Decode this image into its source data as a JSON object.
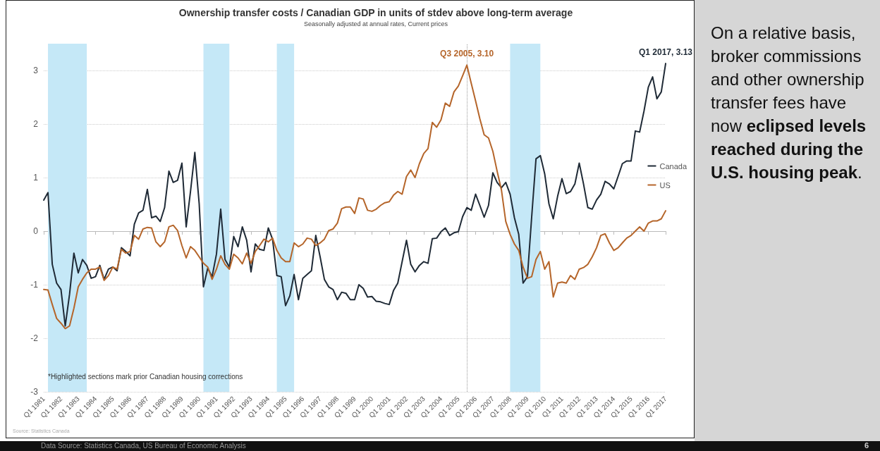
{
  "chart_data": {
    "type": "line",
    "title": "Ownership transfer costs / Canadian GDP in units of stdev above long-term average",
    "subtitle": "Seasonally adjusted at annual rates, Current prices",
    "x": [
      "1981-01",
      "1981-04",
      "1981-07",
      "1981-10",
      "1982-01",
      "1982-04",
      "1982-07",
      "1982-10",
      "1983-01",
      "1983-04",
      "1983-07",
      "1983-10",
      "1984-01",
      "1984-04",
      "1984-07",
      "1984-10",
      "1985-01",
      "1985-04",
      "1985-07",
      "1985-10",
      "1986-01",
      "1986-04",
      "1986-07",
      "1986-10",
      "1987-01",
      "1987-04",
      "1987-07",
      "1987-10",
      "1988-01",
      "1988-04",
      "1988-07",
      "1988-10",
      "1989-01",
      "1989-04",
      "1989-07",
      "1989-10",
      "1990-01",
      "1990-04",
      "1990-07",
      "1990-10",
      "1991-01",
      "1991-04",
      "1991-07",
      "1991-10",
      "1992-01",
      "1992-04",
      "1992-07",
      "1992-10",
      "1993-01",
      "1993-04",
      "1993-07",
      "1993-10",
      "1994-01",
      "1994-04",
      "1994-07",
      "1994-10",
      "1995-01",
      "1995-04",
      "1995-07",
      "1995-10",
      "1996-01",
      "1996-04",
      "1996-07",
      "1996-10",
      "1997-01",
      "1997-04",
      "1997-07",
      "1997-10",
      "1998-01",
      "1998-04",
      "1998-07",
      "1998-10",
      "1999-01",
      "1999-04",
      "1999-07",
      "1999-10",
      "2000-01",
      "2000-04",
      "2000-07",
      "2000-10",
      "2001-01",
      "2001-04",
      "2001-07",
      "2001-10",
      "2002-01",
      "2002-04",
      "2002-07",
      "2002-10",
      "2003-01",
      "2003-04",
      "2003-07",
      "2003-10",
      "2004-01",
      "2004-04",
      "2004-07",
      "2004-10",
      "2005-01",
      "2005-04",
      "2005-07",
      "2005-10",
      "2006-01",
      "2006-04",
      "2006-07",
      "2006-10",
      "2007-01",
      "2007-04",
      "2007-07",
      "2007-10",
      "2008-01",
      "2008-04",
      "2008-07",
      "2008-10",
      "2009-01",
      "2009-04",
      "2009-07",
      "2009-10",
      "2010-01",
      "2010-04",
      "2010-07",
      "2010-10",
      "2011-01",
      "2011-04",
      "2011-07",
      "2011-10",
      "2012-01",
      "2012-04",
      "2012-07",
      "2012-10",
      "2013-01",
      "2013-04",
      "2013-07",
      "2013-10",
      "2014-01",
      "2014-04",
      "2014-07",
      "2014-10",
      "2015-01",
      "2015-04",
      "2015-07",
      "2015-10",
      "2016-01",
      "2016-04",
      "2016-07",
      "2016-10",
      "2017-01"
    ],
    "series": [
      {
        "name": "Canada",
        "color": "#1f2a36",
        "values": [
          0.58,
          0.72,
          -0.62,
          -0.97,
          -1.09,
          -1.77,
          -1.18,
          -0.41,
          -0.78,
          -0.53,
          -0.64,
          -0.88,
          -0.85,
          -0.64,
          -0.9,
          -0.71,
          -0.67,
          -0.74,
          -0.31,
          -0.38,
          -0.46,
          0.13,
          0.34,
          0.39,
          0.78,
          0.25,
          0.28,
          0.18,
          0.44,
          1.12,
          0.91,
          0.95,
          1.27,
          0.08,
          0.74,
          1.47,
          0.51,
          -1.04,
          -0.69,
          -0.85,
          -0.43,
          0.41,
          -0.53,
          -0.67,
          -0.1,
          -0.29,
          0.08,
          -0.17,
          -0.76,
          -0.24,
          -0.34,
          -0.36,
          0.06,
          -0.15,
          -0.83,
          -0.85,
          -1.39,
          -1.21,
          -0.81,
          -1.28,
          -0.88,
          -0.81,
          -0.74,
          -0.08,
          -0.48,
          -0.9,
          -1.04,
          -1.09,
          -1.28,
          -1.14,
          -1.16,
          -1.28,
          -1.28,
          -1.0,
          -1.07,
          -1.23,
          -1.22,
          -1.31,
          -1.32,
          -1.35,
          -1.37,
          -1.11,
          -0.97,
          -0.57,
          -0.17,
          -0.62,
          -0.76,
          -0.64,
          -0.57,
          -0.6,
          -0.14,
          -0.13,
          -0.01,
          0.06,
          -0.08,
          -0.03,
          -0.01,
          0.27,
          0.44,
          0.39,
          0.69,
          0.48,
          0.26,
          0.48,
          1.09,
          0.91,
          0.81,
          0.91,
          0.69,
          0.25,
          -0.06,
          -0.97,
          -0.85,
          0.27,
          1.35,
          1.41,
          1.07,
          0.51,
          0.23,
          0.65,
          0.98,
          0.7,
          0.74,
          0.88,
          1.27,
          0.88,
          0.44,
          0.41,
          0.58,
          0.69,
          0.93,
          0.88,
          0.79,
          1.02,
          1.26,
          1.31,
          1.31,
          1.87,
          1.85,
          2.24,
          2.69,
          2.88,
          2.47,
          2.6,
          3.13
        ]
      },
      {
        "name": "US",
        "color": "#b5652a",
        "values": [
          -1.09,
          -1.1,
          -1.37,
          -1.63,
          -1.72,
          -1.82,
          -1.77,
          -1.44,
          -1.04,
          -0.9,
          -0.78,
          -0.71,
          -0.71,
          -0.67,
          -0.92,
          -0.83,
          -0.67,
          -0.71,
          -0.34,
          -0.41,
          -0.38,
          -0.08,
          -0.15,
          0.04,
          0.07,
          0.06,
          -0.2,
          -0.29,
          -0.2,
          0.08,
          0.11,
          0.01,
          -0.27,
          -0.5,
          -0.29,
          -0.36,
          -0.48,
          -0.6,
          -0.67,
          -0.9,
          -0.71,
          -0.46,
          -0.62,
          -0.71,
          -0.43,
          -0.5,
          -0.61,
          -0.41,
          -0.6,
          -0.38,
          -0.27,
          -0.15,
          -0.2,
          -0.13,
          -0.36,
          -0.5,
          -0.57,
          -0.57,
          -0.22,
          -0.29,
          -0.24,
          -0.13,
          -0.15,
          -0.27,
          -0.22,
          -0.15,
          0.01,
          0.04,
          0.15,
          0.42,
          0.45,
          0.45,
          0.33,
          0.62,
          0.6,
          0.39,
          0.37,
          0.41,
          0.48,
          0.53,
          0.55,
          0.67,
          0.74,
          0.69,
          1.02,
          1.14,
          1.0,
          1.26,
          1.45,
          1.54,
          2.03,
          1.94,
          2.08,
          2.39,
          2.33,
          2.6,
          2.71,
          2.9,
          3.1,
          2.76,
          2.43,
          2.1,
          1.8,
          1.74,
          1.49,
          1.12,
          0.77,
          0.18,
          -0.06,
          -0.24,
          -0.36,
          -0.67,
          -0.88,
          -0.85,
          -0.53,
          -0.38,
          -0.71,
          -0.57,
          -1.23,
          -0.97,
          -0.95,
          -0.97,
          -0.83,
          -0.9,
          -0.71,
          -0.68,
          -0.62,
          -0.48,
          -0.31,
          -0.08,
          -0.05,
          -0.22,
          -0.36,
          -0.31,
          -0.22,
          -0.13,
          -0.08,
          0.0,
          0.08,
          0.0,
          0.15,
          0.19,
          0.19,
          0.23,
          0.38
        ]
      }
    ],
    "xlim": [
      "1981-01",
      "2017-01"
    ],
    "xticks": [
      {
        "value": "1981-01",
        "label": "Q1 1981"
      },
      {
        "value": "1982-01",
        "label": "Q1 1982"
      },
      {
        "value": "1983-01",
        "label": "Q1 1983"
      },
      {
        "value": "1984-01",
        "label": "Q1 1984"
      },
      {
        "value": "1985-01",
        "label": "Q1 1985"
      },
      {
        "value": "1986-01",
        "label": "Q1 1986"
      },
      {
        "value": "1987-01",
        "label": "Q1 1987"
      },
      {
        "value": "1988-01",
        "label": "Q1 1988"
      },
      {
        "value": "1989-01",
        "label": "Q1 1989"
      },
      {
        "value": "1990-01",
        "label": "Q1 1990"
      },
      {
        "value": "1991-01",
        "label": "Q1 1991"
      },
      {
        "value": "1992-01",
        "label": "Q1 1992"
      },
      {
        "value": "1993-01",
        "label": "Q1 1993"
      },
      {
        "value": "1994-01",
        "label": "Q1 1994"
      },
      {
        "value": "1995-01",
        "label": "Q1 1995"
      },
      {
        "value": "1996-01",
        "label": "Q1 1996"
      },
      {
        "value": "1997-01",
        "label": "Q1 1997"
      },
      {
        "value": "1998-01",
        "label": "Q1 1998"
      },
      {
        "value": "1999-01",
        "label": "Q1 1999"
      },
      {
        "value": "2000-01",
        "label": "Q1 2000"
      },
      {
        "value": "2001-01",
        "label": "Q1 2001"
      },
      {
        "value": "2002-01",
        "label": "Q1 2002"
      },
      {
        "value": "2003-01",
        "label": "Q1 2003"
      },
      {
        "value": "2004-01",
        "label": "Q1 2004"
      },
      {
        "value": "2005-01",
        "label": "Q1 2005"
      },
      {
        "value": "2006-01",
        "label": "Q1 2006"
      },
      {
        "value": "2007-01",
        "label": "Q1 2007"
      },
      {
        "value": "2008-01",
        "label": "Q1 2008"
      },
      {
        "value": "2009-01",
        "label": "Q1 2009"
      },
      {
        "value": "2010-01",
        "label": "Q1 2010"
      },
      {
        "value": "2011-01",
        "label": "Q1 2011"
      },
      {
        "value": "2012-01",
        "label": "Q1 2012"
      },
      {
        "value": "2013-01",
        "label": "Q1 2013"
      },
      {
        "value": "2014-01",
        "label": "Q1 2014"
      },
      {
        "value": "2015-01",
        "label": "Q1 2015"
      },
      {
        "value": "2016-01",
        "label": "Q1 2016"
      },
      {
        "value": "2017-01",
        "label": "Q1 2017"
      }
    ],
    "ylim": [
      -3,
      3.5
    ],
    "yticks": [
      -3,
      -2,
      -1,
      0,
      1,
      2,
      3
    ],
    "grid": "y",
    "legend": "right",
    "marker": "none",
    "line_style": "solid",
    "bands": [
      {
        "axis": "x",
        "from": "1981-04",
        "to": "1983-07",
        "color": "#c5e8f7"
      },
      {
        "axis": "x",
        "from": "1990-04",
        "to": "1991-10",
        "color": "#c5e8f7"
      },
      {
        "axis": "x",
        "from": "1994-07",
        "to": "1995-07",
        "color": "#c5e8f7"
      },
      {
        "axis": "x",
        "from": "2008-01",
        "to": "2009-10",
        "color": "#c5e8f7"
      }
    ],
    "ref_lines": [
      {
        "axis": "x",
        "value": "2005-07",
        "color": "#999999",
        "line_style": "dotted"
      }
    ],
    "annotations": [
      {
        "text": "Q3 2005, 3.10",
        "x": "2005-07",
        "y": 3.1
      },
      {
        "text": "Q1 2017, 3.13",
        "x": "2017-01",
        "y": 3.13
      },
      "*Highlighted sections mark prior Canadian housing corrections",
      "Source: Statistics Canada",
      "Data Source: Statistics Canada, US Bureau of Economic Analysis",
      "6",
      "On a relative basis, broker commissions and other ownership transfer fees have now ",
      "eclipsed levels reached during the U.S. housing peak",
      "."
    ]
  }
}
